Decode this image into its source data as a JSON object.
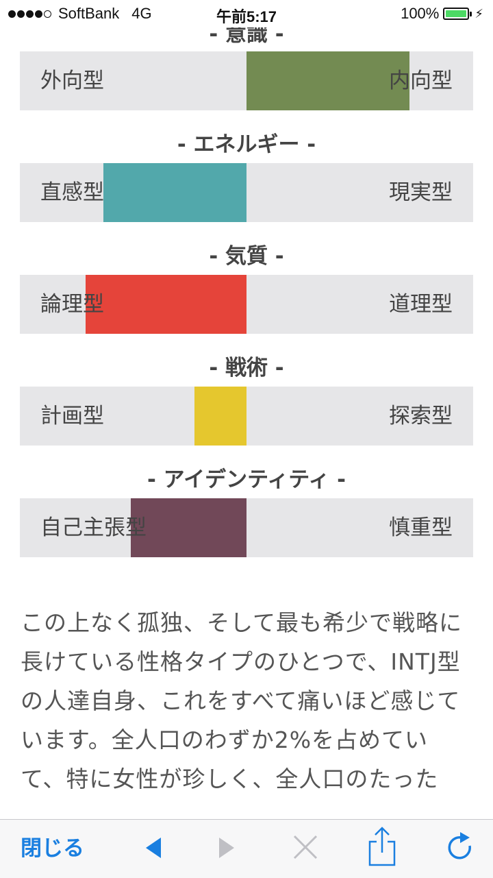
{
  "status_bar": {
    "carrier": "SoftBank",
    "network": "4G",
    "time": "午前5:17",
    "battery_percent": "100%",
    "signal_bars_filled": 4,
    "signal_bars_total": 5,
    "battery_level": 1.0
  },
  "top_heading_partial": "- 意識 -",
  "traits": [
    {
      "heading": "",
      "left": "外向型",
      "right": "内向型",
      "color": "#738b52",
      "side": "right",
      "fraction": 0.72
    },
    {
      "heading": "- エネルギー -",
      "left": "直感型",
      "right": "現実型",
      "color": "#52a8ab",
      "side": "left",
      "fraction": 0.63
    },
    {
      "heading": "- 気質 -",
      "left": "論理型",
      "right": "道理型",
      "color": "#e5443a",
      "side": "left",
      "fraction": 0.71
    },
    {
      "heading": "- 戦術 -",
      "left": "計画型",
      "right": "探索型",
      "color": "#e5c72e",
      "side": "left",
      "fraction": 0.23
    },
    {
      "heading": "- アイデンティティ -",
      "left": "自己主張型",
      "right": "慎重型",
      "color": "#714858",
      "side": "left",
      "fraction": 0.51
    }
  ],
  "description": {
    "lines": [
      "この上なく孤独、そして最も希少で戦略に",
      "長けている性格タイプのひとつで、INTJ型",
      "の人達自身、これをすべて痛いほど感じて",
      "います。全人口のわずか2%を占めてい",
      "て、特に女性が珍しく、全人口のたった"
    ]
  },
  "toolbar": {
    "close_label": "閉じる",
    "accent": "#1a7fe0",
    "disabled_color": "#bfbfc4"
  }
}
